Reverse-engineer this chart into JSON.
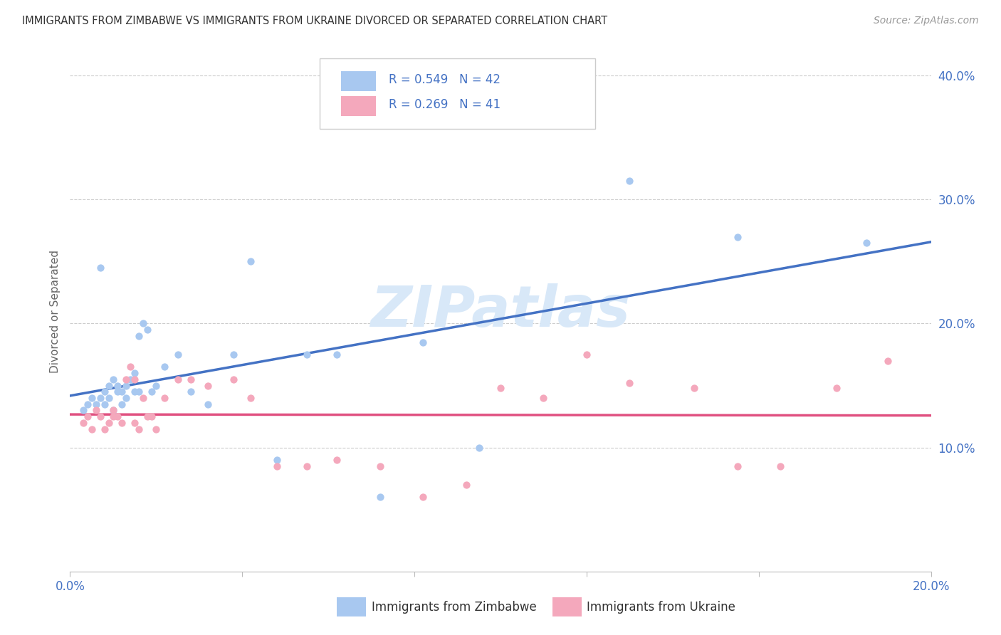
{
  "title": "IMMIGRANTS FROM ZIMBABWE VS IMMIGRANTS FROM UKRAINE DIVORCED OR SEPARATED CORRELATION CHART",
  "source": "Source: ZipAtlas.com",
  "ylabel": "Divorced or Separated",
  "legend_bottom": [
    "Immigrants from Zimbabwe",
    "Immigrants from Ukraine"
  ],
  "r_zimbabwe": 0.549,
  "n_zimbabwe": 42,
  "r_ukraine": 0.269,
  "n_ukraine": 41,
  "color_zimbabwe": "#A8C8F0",
  "color_ukraine": "#F4A8BC",
  "line_color_zimbabwe": "#4472C4",
  "line_color_ukraine": "#E05080",
  "watermark": "ZIPatlas",
  "watermark_color": "#D8E8F8",
  "xlim": [
    0.0,
    0.2
  ],
  "ylim": [
    0.0,
    0.42
  ],
  "yticks": [
    0.1,
    0.2,
    0.3,
    0.4
  ],
  "ytick_labels": [
    "10.0%",
    "20.0%",
    "30.0%",
    "40.0%"
  ],
  "xticks": [
    0.0,
    0.04,
    0.08,
    0.12,
    0.16,
    0.2
  ],
  "xtick_labels": [
    "0.0%",
    "",
    "",
    "",
    "",
    "20.0%"
  ],
  "zimbabwe_x": [
    0.003,
    0.004,
    0.005,
    0.006,
    0.007,
    0.007,
    0.008,
    0.008,
    0.009,
    0.009,
    0.01,
    0.01,
    0.011,
    0.011,
    0.012,
    0.012,
    0.013,
    0.013,
    0.014,
    0.015,
    0.015,
    0.016,
    0.016,
    0.017,
    0.018,
    0.019,
    0.02,
    0.022,
    0.025,
    0.028,
    0.032,
    0.038,
    0.042,
    0.048,
    0.055,
    0.062,
    0.072,
    0.082,
    0.095,
    0.13,
    0.155,
    0.185
  ],
  "zimbabwe_y": [
    0.13,
    0.135,
    0.14,
    0.135,
    0.245,
    0.14,
    0.145,
    0.135,
    0.14,
    0.15,
    0.155,
    0.13,
    0.145,
    0.15,
    0.135,
    0.145,
    0.15,
    0.14,
    0.155,
    0.145,
    0.16,
    0.145,
    0.19,
    0.2,
    0.195,
    0.145,
    0.15,
    0.165,
    0.175,
    0.145,
    0.135,
    0.175,
    0.25,
    0.09,
    0.175,
    0.175,
    0.06,
    0.185,
    0.1,
    0.315,
    0.27,
    0.265
  ],
  "ukraine_x": [
    0.003,
    0.004,
    0.005,
    0.006,
    0.007,
    0.008,
    0.009,
    0.01,
    0.01,
    0.011,
    0.012,
    0.013,
    0.014,
    0.015,
    0.015,
    0.016,
    0.017,
    0.018,
    0.019,
    0.02,
    0.022,
    0.025,
    0.028,
    0.032,
    0.038,
    0.042,
    0.048,
    0.055,
    0.062,
    0.072,
    0.082,
    0.092,
    0.1,
    0.11,
    0.12,
    0.13,
    0.145,
    0.155,
    0.165,
    0.178,
    0.19
  ],
  "ukraine_y": [
    0.12,
    0.125,
    0.115,
    0.13,
    0.125,
    0.115,
    0.12,
    0.125,
    0.13,
    0.125,
    0.12,
    0.155,
    0.165,
    0.12,
    0.155,
    0.115,
    0.14,
    0.125,
    0.125,
    0.115,
    0.14,
    0.155,
    0.155,
    0.15,
    0.155,
    0.14,
    0.085,
    0.085,
    0.09,
    0.085,
    0.06,
    0.07,
    0.148,
    0.14,
    0.175,
    0.152,
    0.148,
    0.085,
    0.085,
    0.148,
    0.17
  ]
}
